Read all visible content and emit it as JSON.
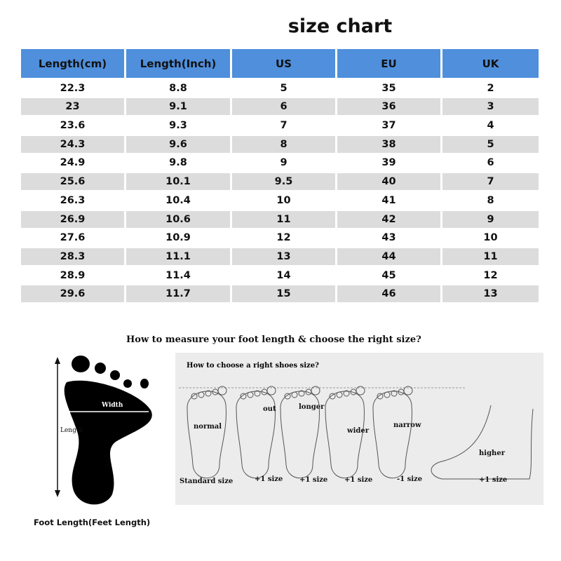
{
  "title": "size chart",
  "table": {
    "headers": [
      "Length(cm)",
      "Length(Inch)",
      "US",
      "EU",
      "UK"
    ],
    "rows": [
      [
        "22.3",
        "8.8",
        "5",
        "35",
        "2"
      ],
      [
        "23",
        "9.1",
        "6",
        "36",
        "3"
      ],
      [
        "23.6",
        "9.3",
        "7",
        "37",
        "4"
      ],
      [
        "24.3",
        "9.6",
        "8",
        "38",
        "5"
      ],
      [
        "24.9",
        "9.8",
        "9",
        "39",
        "6"
      ],
      [
        "25.6",
        "10.1",
        "9.5",
        "40",
        "7"
      ],
      [
        "26.3",
        "10.4",
        "10",
        "41",
        "8"
      ],
      [
        "26.9",
        "10.6",
        "11",
        "42",
        "9"
      ],
      [
        "27.6",
        "10.9",
        "12",
        "43",
        "10"
      ],
      [
        "28.3",
        "11.1",
        "13",
        "44",
        "11"
      ],
      [
        "28.9",
        "11.4",
        "14",
        "45",
        "12"
      ],
      [
        "29.6",
        "11.7",
        "15",
        "46",
        "13"
      ]
    ]
  },
  "guide": {
    "title": "How to measure your foot length & choose the right size?",
    "left": {
      "width_label": "Width",
      "length_label": "Length",
      "caption": "Foot Length(Feet Length)"
    },
    "right": {
      "title": "How to choose a right shoes size?",
      "feet": [
        {
          "label": "normal",
          "size": "Standard size"
        },
        {
          "label": "out",
          "size": "+1 size"
        },
        {
          "label": "longer",
          "size": "+1 size"
        },
        {
          "label": "wider",
          "size": "+1 size"
        },
        {
          "label": "narrow",
          "size": "-1 size"
        },
        {
          "label": "higher",
          "size": "+1 size"
        }
      ]
    }
  },
  "colors": {
    "header": "#4f8fdc",
    "alt_row": "#dcdcdc",
    "panel": "#ececec"
  }
}
